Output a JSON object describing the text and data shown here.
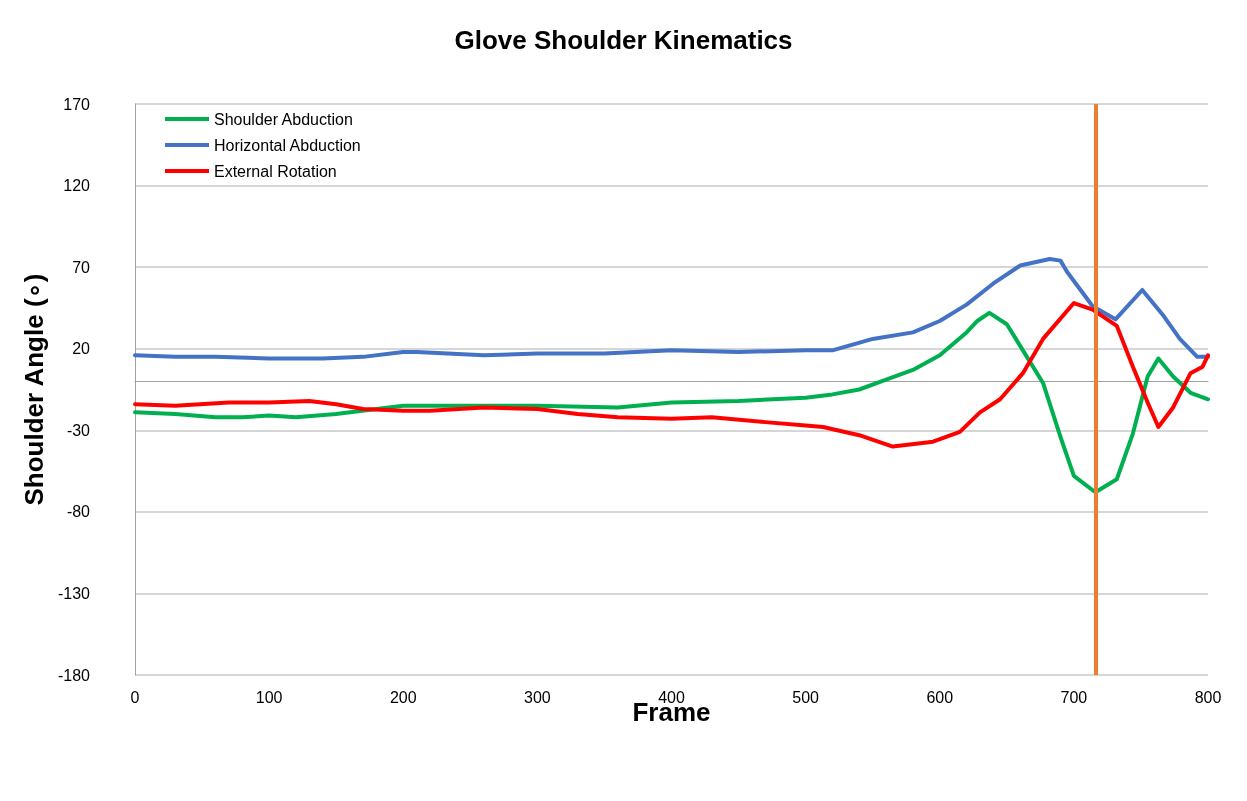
{
  "chart_data": {
    "type": "line",
    "title": "Glove Shoulder Kinematics",
    "xlabel": "Frame",
    "ylabel": "Shoulder Angle (∘)",
    "xlim": [
      0,
      800
    ],
    "xticks": [
      0,
      100,
      200,
      300,
      400,
      500,
      600,
      700,
      800
    ],
    "ylim": [
      -180,
      170
    ],
    "yticks": [
      -180,
      -130,
      -80,
      -30,
      20,
      70,
      120,
      170
    ],
    "grid": "y",
    "legend": "top left",
    "marker": "none",
    "line_style": "solid",
    "ref_lines": [
      {
        "axis": "x",
        "value": 716,
        "color": "#ed7d31"
      }
    ],
    "series": [
      {
        "name": "Shoulder Abduction",
        "color": "#00b050",
        "x": [
          0,
          30,
          60,
          80,
          100,
          120,
          150,
          180,
          200,
          250,
          300,
          360,
          400,
          450,
          500,
          520,
          540,
          560,
          580,
          600,
          620,
          628,
          637,
          650,
          665,
          677,
          690,
          700,
          716,
          732,
          744,
          755,
          763,
          774,
          787,
          800
        ],
        "values": [
          -19,
          -20,
          -22,
          -22,
          -21,
          -22,
          -20,
          -17,
          -15,
          -15,
          -15,
          -16,
          -13,
          -12,
          -10,
          -8,
          -5,
          1,
          7,
          16,
          30,
          37,
          42,
          35,
          15,
          -1,
          -34,
          -58,
          -68,
          -60,
          -32,
          3,
          14,
          3,
          -7,
          -11
        ]
      },
      {
        "name": "Horizontal Abduction",
        "color": "#4472c4",
        "x": [
          0,
          30,
          60,
          100,
          140,
          170,
          200,
          210,
          260,
          300,
          350,
          400,
          450,
          500,
          520,
          550,
          580,
          600,
          620,
          640,
          660,
          682,
          690,
          695,
          714,
          731,
          751,
          767,
          779,
          792,
          800
        ],
        "values": [
          16,
          15,
          15,
          14,
          14,
          15,
          18,
          18,
          16,
          17,
          17,
          19,
          18,
          19,
          19,
          26,
          30,
          37,
          47,
          60,
          71,
          75,
          74,
          67,
          46,
          38,
          56,
          40,
          26,
          15,
          15
        ]
      },
      {
        "name": "External Rotation",
        "color": "#ff0000",
        "x": [
          0,
          30,
          70,
          100,
          130,
          150,
          170,
          200,
          220,
          260,
          300,
          330,
          360,
          400,
          430,
          470,
          500,
          513,
          540,
          565,
          595,
          615,
          630,
          645,
          662,
          677,
          700,
          714,
          732,
          744,
          755,
          763,
          774,
          787,
          796,
          800
        ],
        "values": [
          -14,
          -15,
          -13,
          -13,
          -12,
          -14,
          -17,
          -18,
          -18,
          -16,
          -17,
          -20,
          -22,
          -23,
          -22,
          -25,
          -27,
          -28,
          -33,
          -40,
          -37,
          -31,
          -19,
          -11,
          5,
          26,
          48,
          44,
          34,
          9,
          -13,
          -28,
          -16,
          5,
          9,
          16
        ]
      }
    ]
  }
}
